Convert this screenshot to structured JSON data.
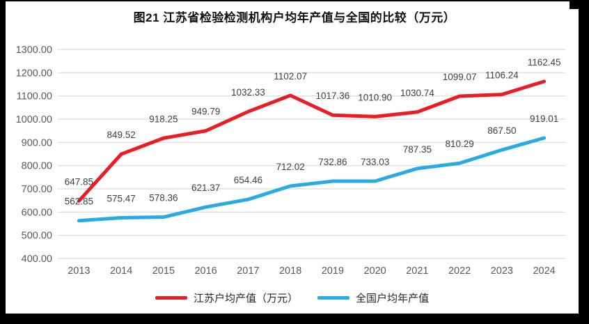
{
  "frame": {
    "page_bg": "#ffffff",
    "scan_edge_color": "#000000"
  },
  "chart_data": {
    "type": "line",
    "title": "图21  江苏省检验检测机构户均年产值与全国的比较（万元）",
    "categories": [
      "2013",
      "2014",
      "2015",
      "2016",
      "2017",
      "2018",
      "2019",
      "2020",
      "2021",
      "2022",
      "2023",
      "2024"
    ],
    "series": [
      {
        "name": "江苏户均产值（万元）",
        "color": "#EC1C24",
        "values": [
          647.85,
          849.52,
          918.25,
          949.79,
          1032.33,
          1102.07,
          1017.36,
          1010.9,
          1030.74,
          1099.07,
          1106.24,
          1162.45
        ]
      },
      {
        "name": "全国户均年产值",
        "color": "#29ABE2",
        "values": [
          562.85,
          575.47,
          578.36,
          621.37,
          654.46,
          712.02,
          732.86,
          733.03,
          787.35,
          810.29,
          867.5,
          919.01
        ]
      }
    ],
    "ylim": [
      400,
      1300
    ],
    "ytick_step": 100,
    "ytick_decimals": 2,
    "data_labels": true,
    "data_label_decimals": 2,
    "grid": true,
    "legend_position": "bottom",
    "colors": {
      "gridline": "#D9D9D9",
      "axis_label": "#595959",
      "data_label": "#404040",
      "title": "#111111"
    }
  }
}
